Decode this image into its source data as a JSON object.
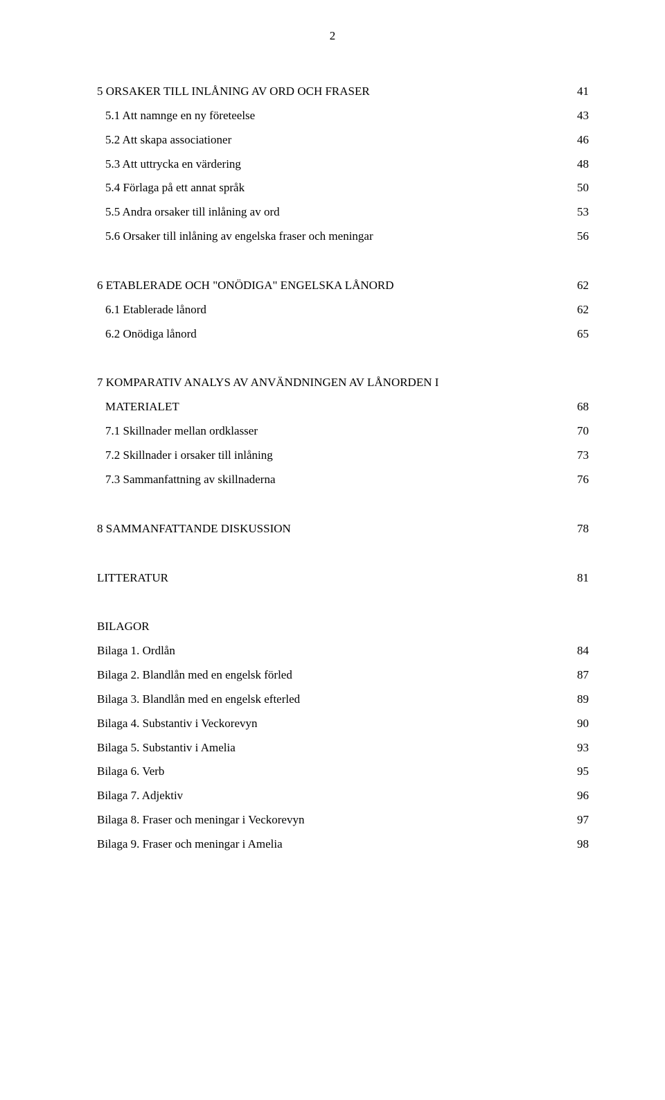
{
  "page_number": "2",
  "sections": [
    {
      "heading": {
        "title": "5 ORSAKER TILL INLÅNING AV ORD OCH FRASER",
        "page": "41"
      },
      "items": [
        {
          "title": "5.1 Att namnge en ny företeelse",
          "page": "43",
          "indent": true
        },
        {
          "title": "5.2 Att skapa associationer",
          "page": "46",
          "indent": true
        },
        {
          "title": "5.3 Att uttrycka en värdering",
          "page": "48",
          "indent": true
        },
        {
          "title": "5.4 Förlaga på ett annat språk",
          "page": "50",
          "indent": true
        },
        {
          "title": "5.5 Andra orsaker till inlåning av ord",
          "page": "53",
          "indent": true
        },
        {
          "title": "5.6 Orsaker till inlåning av engelska fraser och meningar",
          "page": "56",
          "indent": true
        }
      ]
    },
    {
      "heading": {
        "title": "6 ETABLERADE OCH \"ONÖDIGA\" ENGELSKA LÅNORD",
        "page": "62"
      },
      "items": [
        {
          "title": "6.1 Etablerade lånord",
          "page": "62",
          "indent": true
        },
        {
          "title": "6.2 Onödiga lånord",
          "page": "65",
          "indent": true
        }
      ]
    },
    {
      "heading": {
        "line1": "7 KOMPARATIV ANALYS AV ANVÄNDNINGEN AV LÅNORDEN I",
        "line2": "MATERIALET",
        "page": "68"
      },
      "items": [
        {
          "title": "7.1 Skillnader mellan ordklasser",
          "page": "70",
          "indent": true
        },
        {
          "title": "7.2 Skillnader i orsaker till inlåning",
          "page": "73",
          "indent": true
        },
        {
          "title": "7.3 Sammanfattning av skillnaderna",
          "page": "76",
          "indent": true
        }
      ]
    },
    {
      "heading": {
        "title": "8 SAMMANFATTANDE DISKUSSION",
        "page": "78"
      },
      "items": []
    },
    {
      "heading": {
        "title": "LITTERATUR",
        "page": "81"
      },
      "items": []
    }
  ],
  "bilagor": {
    "heading": "BILAGOR",
    "items": [
      {
        "title": "Bilaga 1. Ordlån",
        "page": "84"
      },
      {
        "title": "Bilaga 2. Blandlån med en engelsk förled",
        "page": "87"
      },
      {
        "title": "Bilaga 3. Blandlån med en engelsk efterled",
        "page": "89"
      },
      {
        "title": "Bilaga 4. Substantiv i Veckorevyn",
        "page": "90"
      },
      {
        "title": "Bilaga 5. Substantiv i Amelia",
        "page": "93"
      },
      {
        "title": "Bilaga 6. Verb",
        "page": "95"
      },
      {
        "title": "Bilaga 7. Adjektiv",
        "page": "96"
      },
      {
        "title": "Bilaga 8. Fraser och meningar i Veckorevyn",
        "page": "97"
      },
      {
        "title": "Bilaga 9. Fraser och meningar i Amelia",
        "page": "98"
      }
    ]
  }
}
